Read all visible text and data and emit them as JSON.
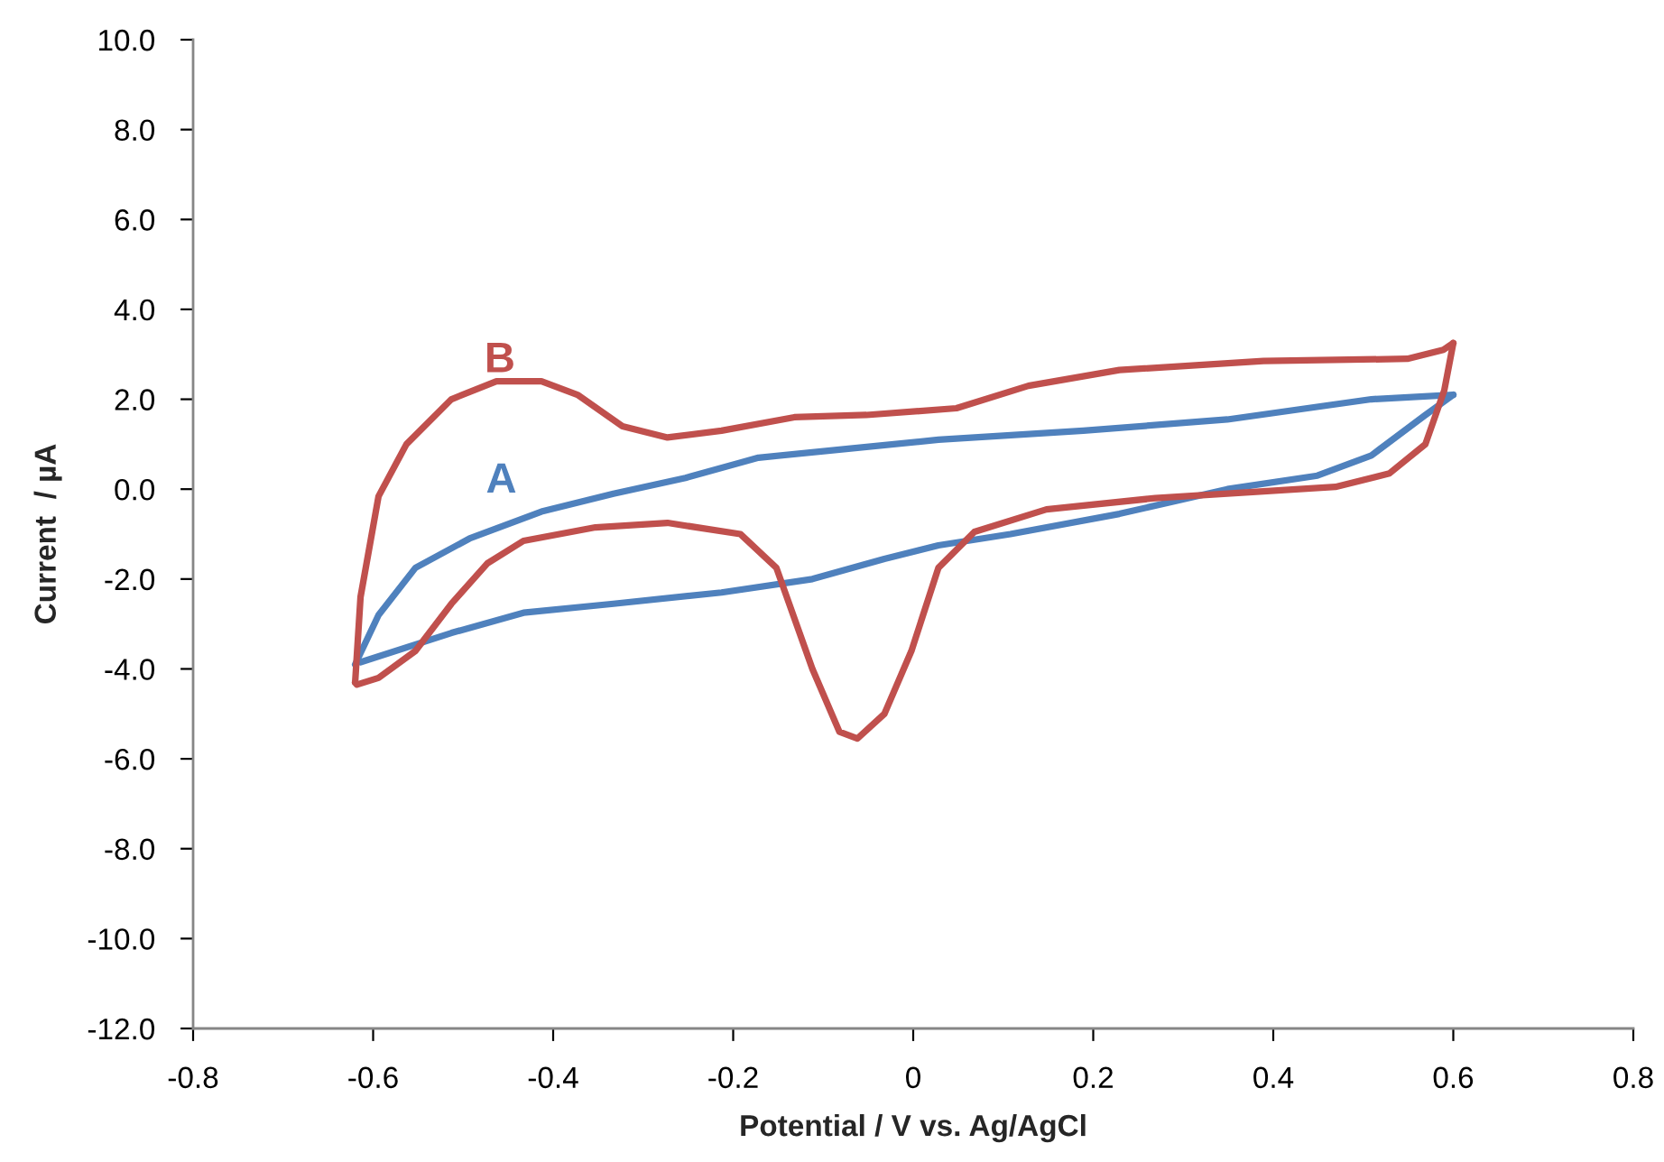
{
  "chart_data": {
    "type": "line",
    "xlabel": "Potential / V vs. Ag/AgCl",
    "ylabel": "Current  / µA",
    "xlim": [
      -0.8,
      0.8
    ],
    "xticks": [
      {
        "value": -0.8,
        "label": "-0.8"
      },
      {
        "value": -0.6,
        "label": "-0.6"
      },
      {
        "value": -0.4,
        "label": "-0.4"
      },
      {
        "value": -0.2,
        "label": "-0.2"
      },
      {
        "value": 0,
        "label": "0"
      },
      {
        "value": 0.2,
        "label": "0.2"
      },
      {
        "value": 0.4,
        "label": "0.4"
      },
      {
        "value": 0.6,
        "label": "0.6"
      },
      {
        "value": 0.8,
        "label": "0.8"
      }
    ],
    "ylim": [
      -12,
      10
    ],
    "yticks": [
      {
        "value": -12,
        "label": "-12.0"
      },
      {
        "value": -10,
        "label": "-10.0"
      },
      {
        "value": -8,
        "label": "-8.0"
      },
      {
        "value": -6,
        "label": "-6.0"
      },
      {
        "value": -4,
        "label": "-4.0"
      },
      {
        "value": -2,
        "label": "-2.0"
      },
      {
        "value": 0,
        "label": "0.0"
      },
      {
        "value": 2,
        "label": "2.0"
      },
      {
        "value": 4,
        "label": "4.0"
      },
      {
        "value": 6,
        "label": "6.0"
      },
      {
        "value": 8,
        "label": "8.0"
      },
      {
        "value": 10,
        "label": "10.0"
      }
    ],
    "grid": false,
    "legend": false,
    "marker": "none",
    "line_style": "solid",
    "series": [
      {
        "name": "A",
        "color": "#4f81bd",
        "x": [
          -0.62,
          -0.594,
          -0.553,
          -0.493,
          -0.413,
          -0.333,
          -0.253,
          -0.172,
          -0.072,
          0.028,
          0.189,
          0.349,
          0.509,
          0.6
        ],
        "values": [
          -3.9,
          -2.8,
          -1.75,
          -1.1,
          -0.5,
          -0.1,
          0.25,
          0.7,
          0.9,
          1.1,
          1.3,
          1.55,
          2.0,
          2.1
        ]
      },
      {
        "color": "#4f81bd",
        "x": [
          0.6,
          0.569,
          0.509,
          0.449,
          0.349,
          0.229,
          0.108,
          0.028,
          -0.032,
          -0.112,
          -0.213,
          -0.333,
          -0.433,
          -0.513,
          -0.614
        ],
        "values": [
          2.1,
          1.65,
          0.75,
          0.3,
          0.0,
          -0.55,
          -1.0,
          -1.25,
          -1.55,
          -2.0,
          -2.3,
          -2.55,
          -2.75,
          -3.2,
          -3.85
        ]
      },
      {
        "name": "B",
        "color": "#c0504d",
        "x": [
          -0.62,
          -0.614,
          -0.594,
          -0.563,
          -0.513,
          -0.463,
          -0.413,
          -0.373,
          -0.323,
          -0.273,
          -0.213,
          -0.132,
          -0.052,
          0.048,
          0.128,
          0.229,
          0.389,
          0.549,
          0.589,
          0.6
        ],
        "values": [
          -4.3,
          -2.4,
          -0.16,
          1.0,
          2.0,
          2.4,
          2.4,
          2.1,
          1.4,
          1.15,
          1.3,
          1.6,
          1.65,
          1.8,
          2.3,
          2.65,
          2.85,
          2.9,
          3.1,
          3.25
        ]
      },
      {
        "color": "#c0504d",
        "x": [
          0.6,
          0.59,
          0.569,
          0.529,
          0.469,
          0.389,
          0.269,
          0.148,
          0.068,
          0.028,
          -0.002,
          -0.032,
          -0.062,
          -0.082,
          -0.112,
          -0.152,
          -0.192,
          -0.273,
          -0.353,
          -0.433,
          -0.473,
          -0.513,
          -0.553,
          -0.594,
          -0.618,
          -0.62
        ],
        "values": [
          3.25,
          2.2,
          1.0,
          0.35,
          0.05,
          -0.05,
          -0.2,
          -0.45,
          -0.95,
          -1.75,
          -3.6,
          -5.0,
          -5.55,
          -5.4,
          -4.0,
          -1.75,
          -1.0,
          -0.75,
          -0.85,
          -1.15,
          -1.65,
          -2.55,
          -3.6,
          -4.2,
          -4.35,
          -4.3
        ]
      }
    ]
  }
}
